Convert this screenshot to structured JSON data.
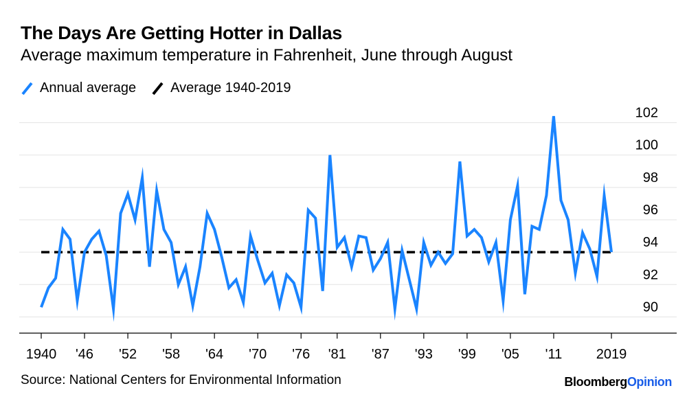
{
  "chart_data": {
    "type": "line",
    "title": "The Days Are Getting Hotter in Dallas",
    "subtitle": "Average maximum temperature in Fahrenheit, June through August",
    "source": "Source: National Centers for Environmental Information",
    "brand": {
      "part1": "Bloomberg",
      "part2": "Opinion",
      "accent_color": "#1a5ee8"
    },
    "ylim": [
      89,
      103
    ],
    "yticks": [
      90,
      92,
      94,
      96,
      98,
      100,
      102
    ],
    "xlim": [
      1940,
      2019
    ],
    "xticks": [
      {
        "value": 1940,
        "label": "1940"
      },
      {
        "value": 1946,
        "label": "'46"
      },
      {
        "value": 1952,
        "label": "'52"
      },
      {
        "value": 1958,
        "label": "'58"
      },
      {
        "value": 1964,
        "label": "'64"
      },
      {
        "value": 1970,
        "label": "'70"
      },
      {
        "value": 1976,
        "label": "'76"
      },
      {
        "value": 1981,
        "label": "'81"
      },
      {
        "value": 1987,
        "label": "'87"
      },
      {
        "value": 1993,
        "label": "'93"
      },
      {
        "value": 1999,
        "label": "'99"
      },
      {
        "value": 2005,
        "label": "'05"
      },
      {
        "value": 2011,
        "label": "'11"
      },
      {
        "value": 2019,
        "label": "2019"
      }
    ],
    "series": [
      {
        "name": "Annual average",
        "color": "#1a84ff",
        "x_start": 1940,
        "values": [
          90.6,
          91.8,
          92.4,
          95.4,
          94.8,
          91.0,
          94.0,
          94.8,
          95.3,
          93.8,
          90.5,
          96.4,
          97.6,
          96.0,
          98.6,
          93.1,
          97.8,
          95.4,
          94.6,
          92.0,
          93.1,
          90.7,
          93.1,
          96.4,
          95.4,
          93.7,
          91.8,
          92.3,
          90.9,
          95.0,
          93.5,
          92.1,
          92.7,
          90.7,
          92.6,
          92.1,
          90.6,
          96.6,
          96.1,
          91.6,
          100.0,
          94.3,
          94.9,
          93.1,
          95.0,
          94.9,
          92.9,
          93.6,
          94.6,
          90.5,
          94.1,
          92.3,
          90.5,
          94.6,
          93.2,
          94.0,
          93.3,
          93.9,
          99.6,
          95.0,
          95.4,
          94.9,
          93.4,
          94.6,
          91.0,
          96.0,
          98.1,
          91.4,
          95.6,
          95.4,
          97.5,
          102.4,
          97.2,
          96.0,
          92.7,
          95.2,
          94.2,
          92.5,
          97.5,
          94.0
        ]
      },
      {
        "name": "Average 1940-2019",
        "color": "#000000",
        "dashed": true,
        "value": 94.0
      }
    ],
    "legend": [
      {
        "label": "Annual average",
        "color": "#1a84ff",
        "style": "solid"
      },
      {
        "label": "Average 1940-2019",
        "color": "#000000",
        "style": "solid"
      }
    ],
    "grid": true,
    "ytick_side": "right"
  }
}
